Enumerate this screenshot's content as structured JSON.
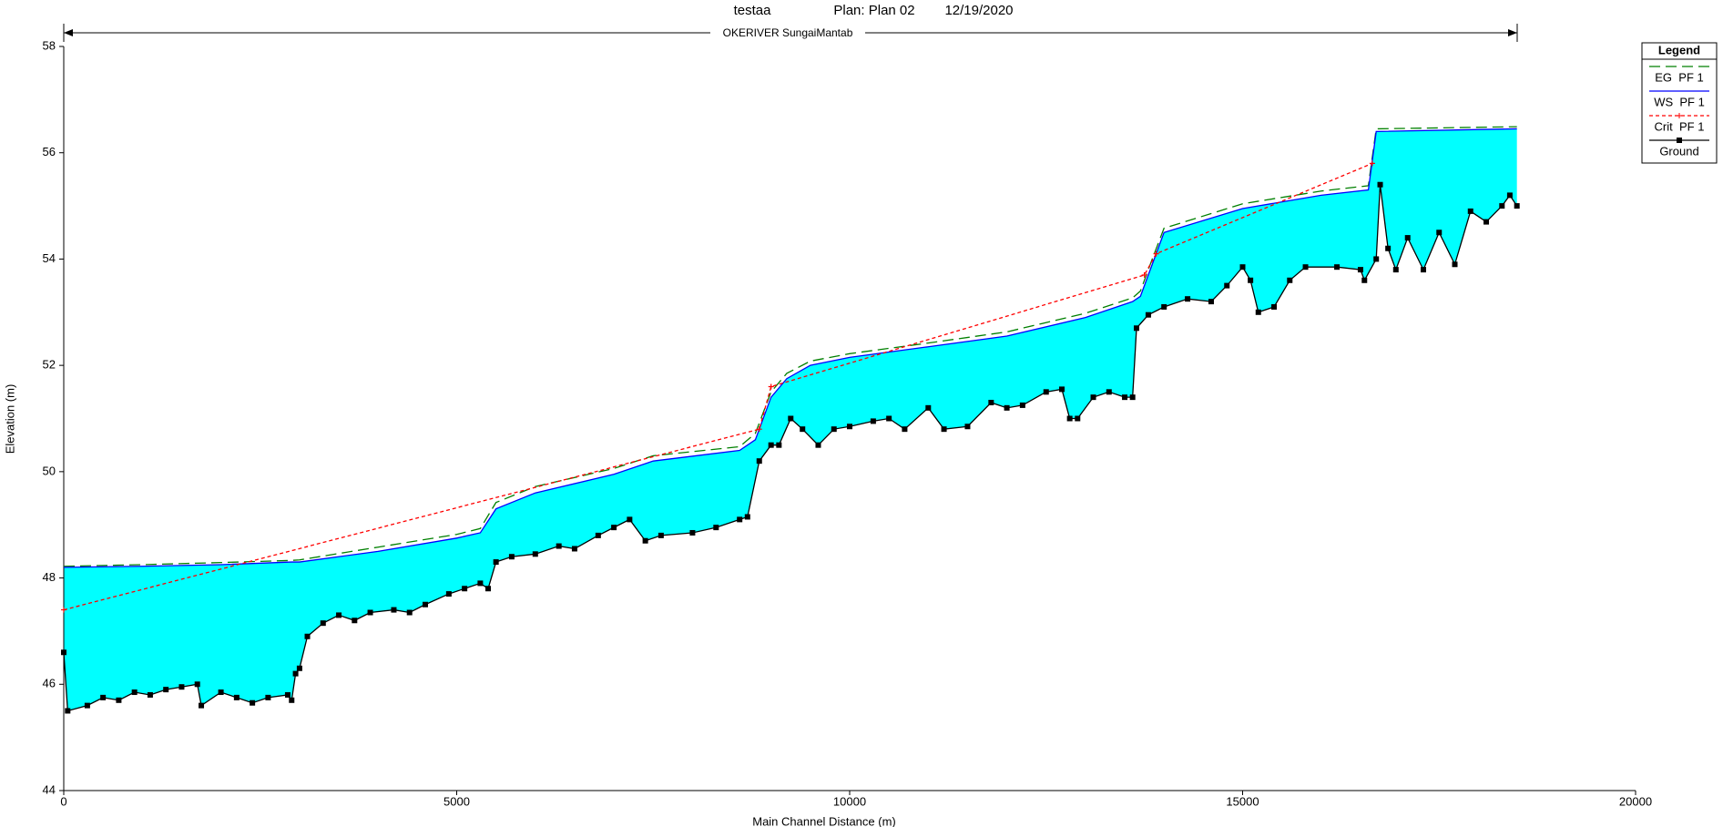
{
  "chart_data": {
    "type": "line",
    "title": "testaa",
    "plan": "Plan: Plan 02",
    "date": "12/19/2020",
    "river_label": "OKERIVER SungaiMantab",
    "xlabel": "Main Channel Distance (m)",
    "ylabel": "Elevation (m)",
    "legend_title": "Legend",
    "legend_position": "right",
    "fill_color": "#00ffff",
    "xlim": [
      0,
      20000
    ],
    "ylim": [
      44,
      58
    ],
    "xticks": [
      0,
      5000,
      10000,
      15000,
      20000
    ],
    "yticks": [
      44,
      46,
      48,
      50,
      52,
      54,
      56,
      58
    ],
    "series": [
      {
        "name": "EG  PF 1",
        "color": "#008000",
        "style": "dashed",
        "x": [
          0,
          1000,
          2000,
          2900,
          3000,
          4000,
          5000,
          5300,
          5500,
          6000,
          7000,
          7500,
          8600,
          8800,
          9000,
          9200,
          9500,
          10000,
          11000,
          12000,
          13000,
          13600,
          13700,
          13850,
          14000,
          15000,
          16000,
          16600,
          16700,
          18490
        ],
        "values": [
          48.22,
          48.25,
          48.29,
          48.33,
          48.34,
          48.58,
          48.82,
          48.93,
          49.42,
          49.72,
          50.06,
          50.3,
          50.47,
          50.72,
          51.5,
          51.85,
          52.08,
          52.22,
          52.42,
          52.63,
          52.98,
          53.27,
          53.4,
          54.0,
          54.58,
          55.04,
          55.28,
          55.38,
          56.45,
          56.49
        ]
      },
      {
        "name": "WS  PF 1",
        "color": "#0000ff",
        "style": "solid",
        "x": [
          0,
          1000,
          2000,
          2900,
          3000,
          4000,
          5000,
          5300,
          5500,
          6000,
          7000,
          7500,
          8600,
          8800,
          9000,
          9200,
          9500,
          10000,
          11000,
          12000,
          13000,
          13600,
          13700,
          13850,
          14000,
          15000,
          16000,
          16600,
          16700,
          18490
        ],
        "values": [
          48.2,
          48.22,
          48.25,
          48.3,
          48.3,
          48.5,
          48.75,
          48.85,
          49.3,
          49.6,
          49.95,
          50.2,
          50.4,
          50.6,
          51.4,
          51.75,
          52.0,
          52.15,
          52.35,
          52.55,
          52.9,
          53.2,
          53.3,
          53.9,
          54.5,
          54.95,
          55.2,
          55.3,
          56.4,
          56.45
        ]
      },
      {
        "name": "Crit  PF 1",
        "color": "#ff0000",
        "style": "dotted",
        "marker": "plus",
        "x": [
          0,
          8850,
          9000,
          13750,
          13900,
          16650
        ],
        "values": [
          47.4,
          50.8,
          51.6,
          53.7,
          54.1,
          55.8
        ]
      },
      {
        "name": "Ground",
        "color": "#000000",
        "style": "solid",
        "marker": "square",
        "x": [
          0,
          50,
          300,
          500,
          700,
          900,
          1100,
          1300,
          1500,
          1700,
          1750,
          2000,
          2200,
          2400,
          2600,
          2850,
          2900,
          2950,
          3000,
          3100,
          3300,
          3500,
          3700,
          3900,
          4200,
          4400,
          4600,
          4900,
          5100,
          5300,
          5400,
          5500,
          5700,
          6000,
          6300,
          6500,
          6800,
          7000,
          7200,
          7400,
          7600,
          8000,
          8300,
          8600,
          8700,
          8850,
          9000,
          9100,
          9250,
          9400,
          9600,
          9800,
          10000,
          10300,
          10500,
          10700,
          11000,
          11200,
          11500,
          11800,
          12000,
          12200,
          12500,
          12700,
          12800,
          12900,
          13100,
          13300,
          13500,
          13600,
          13650,
          13800,
          14000,
          14300,
          14600,
          14800,
          15000,
          15100,
          15200,
          15400,
          15600,
          15800,
          16200,
          16500,
          16550,
          16700,
          16750,
          16850,
          16950,
          17100,
          17300,
          17500,
          17700,
          17900,
          18100,
          18300,
          18400,
          18490
        ],
        "values": [
          46.6,
          45.5,
          45.6,
          45.75,
          45.7,
          45.85,
          45.8,
          45.9,
          45.95,
          46.0,
          45.6,
          45.85,
          45.75,
          45.65,
          45.75,
          45.8,
          45.7,
          46.2,
          46.3,
          46.9,
          47.15,
          47.3,
          47.2,
          47.35,
          47.4,
          47.35,
          47.5,
          47.7,
          47.8,
          47.9,
          47.8,
          48.3,
          48.4,
          48.45,
          48.6,
          48.55,
          48.8,
          48.95,
          49.1,
          48.7,
          48.8,
          48.85,
          48.95,
          49.1,
          49.15,
          50.2,
          50.5,
          50.5,
          51.0,
          50.8,
          50.5,
          50.8,
          50.85,
          50.95,
          51.0,
          50.8,
          51.2,
          50.8,
          50.85,
          51.3,
          51.2,
          51.25,
          51.5,
          51.55,
          51.0,
          51.0,
          51.4,
          51.5,
          51.4,
          51.4,
          52.7,
          52.95,
          53.1,
          53.25,
          53.2,
          53.5,
          53.85,
          53.6,
          53.0,
          53.1,
          53.6,
          53.85,
          53.85,
          53.8,
          53.6,
          54.0,
          55.4,
          54.2,
          53.8,
          54.4,
          53.8,
          54.5,
          53.9,
          54.9,
          54.7,
          55.0,
          55.2,
          55.0
        ]
      }
    ]
  }
}
